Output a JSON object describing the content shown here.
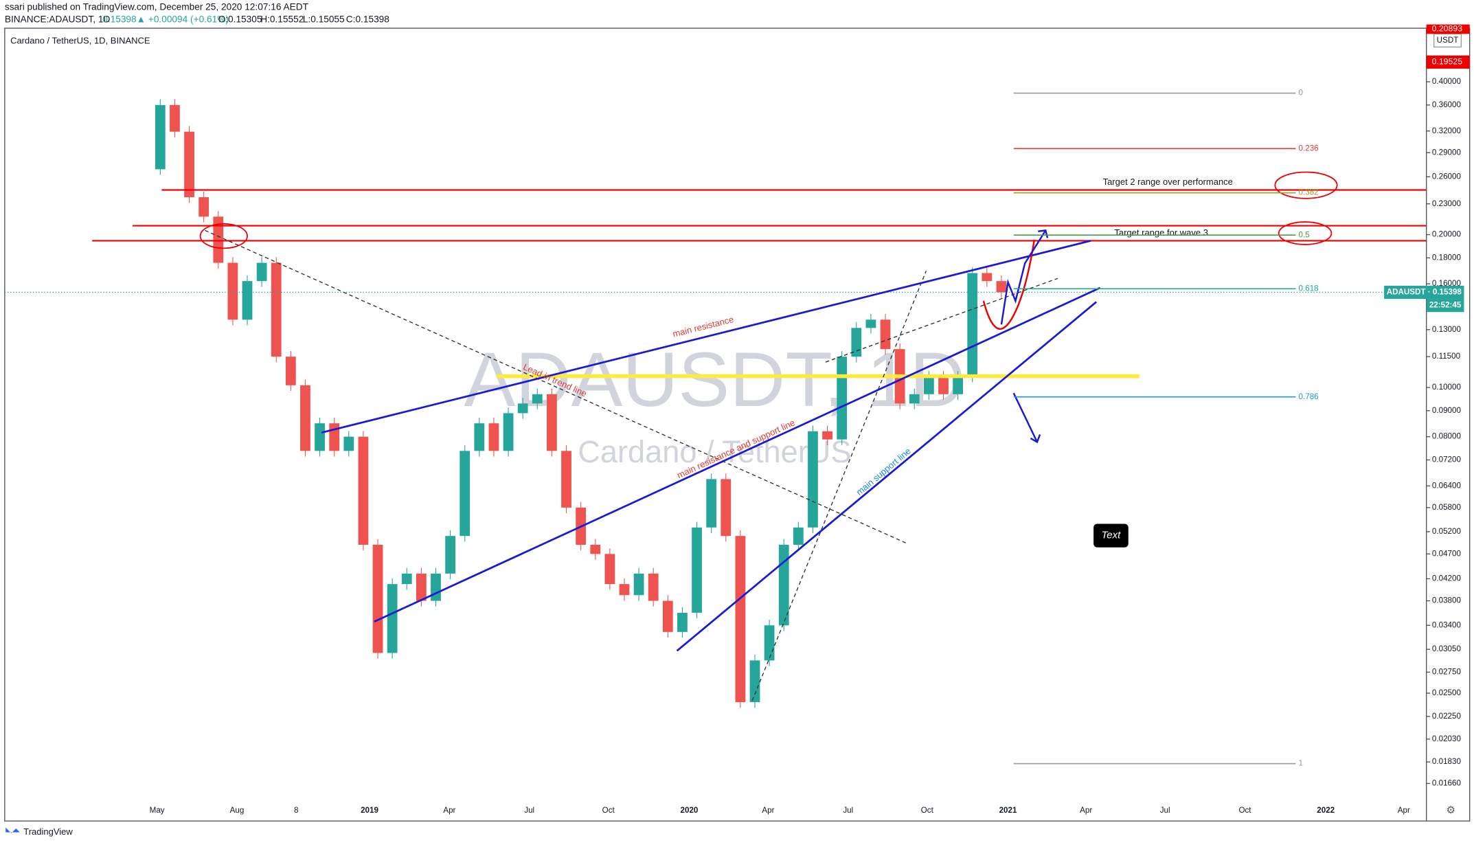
{
  "header": {
    "publisher": "ssari published on TradingView.com, December 25, 2020 12:07:16 AEDT",
    "symbol": "BINANCE:ADAUSDT, 1D",
    "last": "0.15398",
    "change": "▲ +0.00094 (+0.61%)",
    "open": "O:0.15305",
    "high": "H:0.15552",
    "low": "L:0.15055",
    "close": "C:0.15398"
  },
  "chart_data": {
    "type": "candlestick",
    "legend": "Cardano / TetherUS, 1D, BINANCE",
    "watermark": "ADAUSDT, 1D",
    "watermark_subtitle": "Cardano / TetherUS",
    "series": [
      {
        "name": "ADAUSDT",
        "up_color": "#26a69a",
        "down_color": "#ef5350",
        "values": [
          0.269,
          0.36,
          0.319,
          0.237,
          0.217,
          0.176,
          0.136,
          0.162,
          0.176,
          0.115,
          0.101,
          0.075,
          0.085,
          0.075,
          0.08,
          0.049,
          0.03,
          0.041,
          0.043,
          0.038,
          0.043,
          0.051,
          0.075,
          0.085,
          0.075,
          0.089,
          0.093,
          0.097,
          0.075,
          0.058,
          0.049,
          0.047,
          0.041,
          0.039,
          0.043,
          0.038,
          0.033,
          0.036,
          0.053,
          0.066,
          0.051,
          0.024,
          0.029,
          0.034,
          0.049,
          0.053,
          0.082,
          0.079,
          0.115,
          0.131,
          0.136,
          0.119,
          0.093,
          0.097,
          0.105,
          0.097,
          0.105,
          0.168,
          0.162,
          0.154
        ]
      }
    ],
    "last_value": {
      "label": "ADAUSDT · 0.15398",
      "value": 0.15398,
      "countdown": "22:52:45",
      "color": "#26a69a"
    },
    "log_scale": true,
    "ylim": [
      0.014,
      0.51
    ],
    "yticks": [
      {
        "value": 0.4,
        "label": "0.40000"
      },
      {
        "value": 0.36,
        "label": "0.36000"
      },
      {
        "value": 0.32,
        "label": "0.32000"
      },
      {
        "value": 0.29,
        "label": "0.29000"
      },
      {
        "value": 0.26,
        "label": "0.26000"
      },
      {
        "value": 0.23,
        "label": "0.23000"
      },
      {
        "value": 0.2,
        "label": "0.20000"
      },
      {
        "value": 0.18,
        "label": "0.18000"
      },
      {
        "value": 0.16,
        "label": "0.16000"
      },
      {
        "value": 0.13,
        "label": "0.13000"
      },
      {
        "value": 0.115,
        "label": "0.11500"
      },
      {
        "value": 0.1,
        "label": "0.10000"
      },
      {
        "value": 0.09,
        "label": "0.09000"
      },
      {
        "value": 0.08,
        "label": "0.08000"
      },
      {
        "value": 0.072,
        "label": "0.07200"
      },
      {
        "value": 0.064,
        "label": "0.06400"
      },
      {
        "value": 0.058,
        "label": "0.05800"
      },
      {
        "value": 0.052,
        "label": "0.05200"
      },
      {
        "value": 0.047,
        "label": "0.04700"
      },
      {
        "value": 0.042,
        "label": "0.04200"
      },
      {
        "value": 0.038,
        "label": "0.03800"
      },
      {
        "value": 0.034,
        "label": "0.03400"
      },
      {
        "value": 0.0305,
        "label": "0.03050"
      },
      {
        "value": 0.0275,
        "label": "0.02750"
      },
      {
        "value": 0.025,
        "label": "0.02500"
      },
      {
        "value": 0.0225,
        "label": "0.02250"
      },
      {
        "value": 0.0203,
        "label": "0.02030"
      },
      {
        "value": 0.0183,
        "label": "0.01830"
      },
      {
        "value": 0.0166,
        "label": "0.01660"
      }
    ],
    "axis_unit": "USDT",
    "top_labels": [
      "0.20893",
      "0.19525"
    ],
    "time_labels": [
      "May",
      "Aug",
      "8",
      "2019",
      "Apr",
      "Jul",
      "Oct",
      "2020",
      "Apr",
      "Jul",
      "Oct",
      "2021",
      "Apr",
      "Jul",
      "Oct",
      "2022",
      "Apr"
    ],
    "fib_levels": [
      {
        "label": "0",
        "color": "#999999"
      },
      {
        "label": "0.236",
        "color": "#e53935"
      },
      {
        "label": "0.382",
        "color": "#9e9d24"
      },
      {
        "label": "0.5",
        "color": "#43a047"
      },
      {
        "label": "0.618",
        "color": "#26a69a"
      },
      {
        "label": "0.786",
        "color": "#2196f3"
      },
      {
        "label": "1",
        "color": "#999999"
      }
    ],
    "annotations": {
      "main_resistance": "main resistance",
      "lead_in": "Lead in trend line",
      "res_support": "main resistance and support line",
      "support": "main support line",
      "target2": "Target 2 range over performance",
      "target_wave3": "Target range for wave 3",
      "text_box": "Text"
    }
  },
  "footer": {
    "brand": "TradingView"
  }
}
